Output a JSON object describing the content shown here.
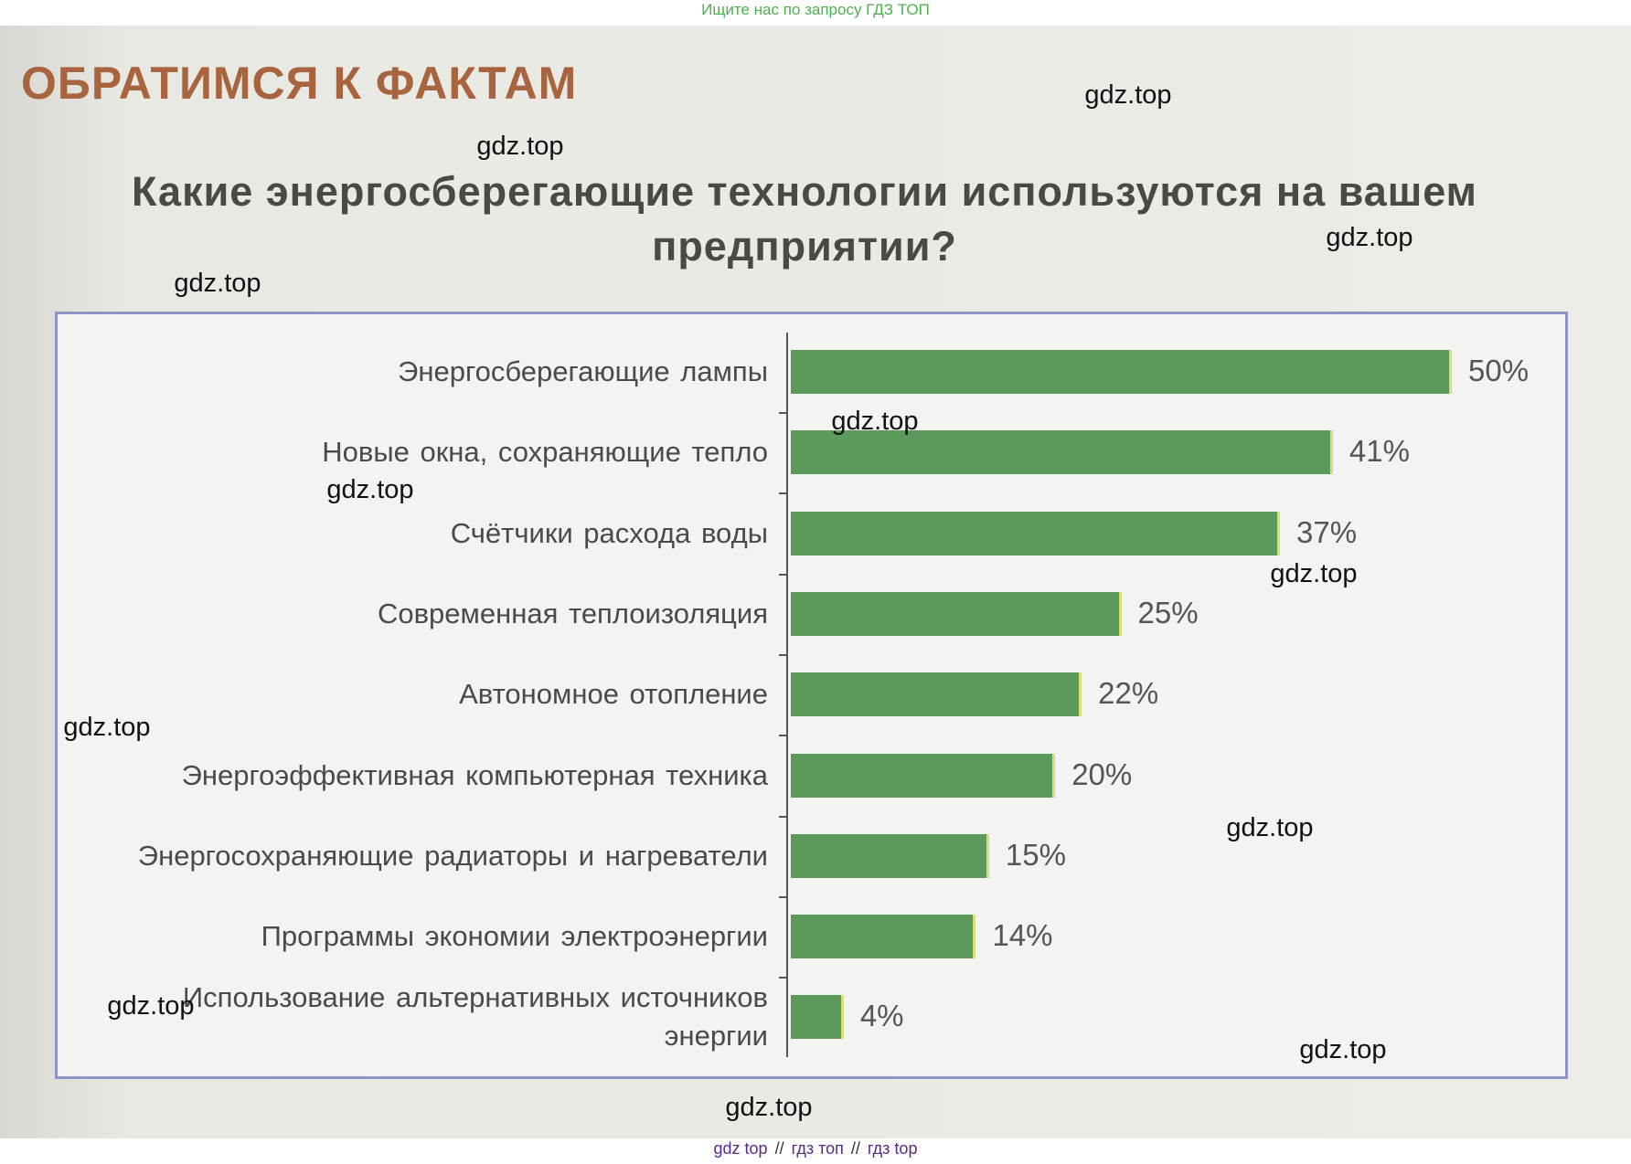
{
  "top_note": "Ищите нас по запросу ГДЗ ТОП",
  "heading": "ОБРАТИМСЯ К ФАКТАМ",
  "watermarks": [
    "gdz.top",
    "gdz.top",
    "gdz.top",
    "gdz.top",
    "gdz.top",
    "gdz.top",
    "gdz.top",
    "gdz.top",
    "gdz.top",
    "gdz.top",
    "gdz.top",
    "gdz.top"
  ],
  "footer": {
    "links": [
      "gdz top",
      "гдз топ",
      "гдз top"
    ],
    "separator": "//"
  },
  "chart_data": {
    "type": "bar",
    "orientation": "horizontal",
    "title": "Какие энергосберегающие технологии используются на вашем предприятии?",
    "categories": [
      "Энергосберегающие лампы",
      "Новые окна, сохраняющие тепло",
      "Счётчики расхода воды",
      "Современная теплоизоляция",
      "Автономное отопление",
      "Энергоэффективная компьютерная техника",
      "Энергосохраняющие радиаторы и нагреватели",
      "Программы экономии электроэнергии",
      "Использование альтернативных источников энергии"
    ],
    "values": [
      50,
      41,
      37,
      25,
      22,
      20,
      15,
      14,
      4
    ],
    "value_labels": [
      "50%",
      "41%",
      "37%",
      "25%",
      "22%",
      "20%",
      "15%",
      "14%",
      "4%"
    ],
    "color": "#5b9a5a"
  }
}
